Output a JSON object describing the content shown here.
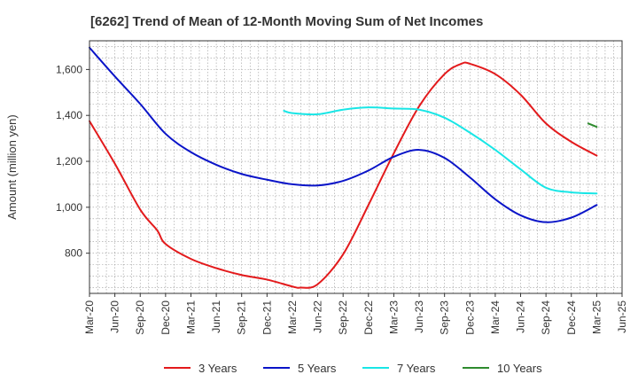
{
  "chart_data": {
    "type": "line",
    "title": "[6262]  Trend of Mean of 12-Month Moving Sum of Net Incomes",
    "xlabel": "",
    "ylabel": "Amount (million yen)",
    "ylim": [
      625,
      1725
    ],
    "yticks": [
      800,
      1000,
      1200,
      1400,
      1600
    ],
    "ytick_labels": [
      "800",
      "1,000",
      "1,200",
      "1,400",
      "1,600"
    ],
    "xrange": [
      "Mar-20",
      "Jun-25"
    ],
    "xtick_labels": [
      "Mar-20",
      "Jun-20",
      "Sep-20",
      "Dec-20",
      "Mar-21",
      "Jun-21",
      "Sep-21",
      "Dec-21",
      "Mar-22",
      "Jun-22",
      "Sep-22",
      "Dec-22",
      "Mar-23",
      "Jun-23",
      "Sep-23",
      "Dec-23",
      "Mar-24",
      "Jun-24",
      "Sep-24",
      "Dec-24",
      "Mar-25",
      "Jun-25"
    ],
    "grid": true,
    "legend_position": "bottom",
    "series": [
      {
        "name": "3 Years",
        "color": "#e31a1c",
        "x": [
          "Mar-20",
          "Jun-20",
          "Sep-20",
          "Nov-20",
          "Dec-20",
          "Mar-21",
          "Jun-21",
          "Sep-21",
          "Dec-21",
          "Mar-22",
          "Apr-22",
          "Jun-22",
          "Sep-22",
          "Dec-22",
          "Mar-23",
          "Jun-23",
          "Sep-23",
          "Nov-23",
          "Dec-23",
          "Mar-24",
          "Jun-24",
          "Sep-24",
          "Dec-24",
          "Mar-25"
        ],
        "y": [
          1375,
          1190,
          990,
          900,
          840,
          775,
          735,
          705,
          685,
          655,
          650,
          665,
          795,
          1010,
          1235,
          1440,
          1580,
          1625,
          1625,
          1580,
          1490,
          1365,
          1285,
          1225
        ]
      },
      {
        "name": "5 Years",
        "color": "#0a14c8",
        "x": [
          "Mar-20",
          "Jun-20",
          "Sep-20",
          "Dec-20",
          "Mar-21",
          "Jun-21",
          "Sep-21",
          "Dec-21",
          "Mar-22",
          "Jun-22",
          "Sep-22",
          "Dec-22",
          "Mar-23",
          "Jun-23",
          "Sep-23",
          "Dec-23",
          "Mar-24",
          "Jun-24",
          "Sep-24",
          "Dec-24",
          "Mar-25"
        ],
        "y": [
          1695,
          1570,
          1450,
          1320,
          1240,
          1185,
          1145,
          1120,
          1100,
          1095,
          1115,
          1160,
          1220,
          1250,
          1215,
          1130,
          1035,
          965,
          935,
          955,
          1010
        ]
      },
      {
        "name": "7 Years",
        "color": "#19e6e6",
        "x": [
          "Feb-22",
          "Mar-22",
          "Jun-22",
          "Sep-22",
          "Dec-22",
          "Mar-23",
          "Jun-23",
          "Sep-23",
          "Dec-23",
          "Mar-24",
          "Jun-24",
          "Sep-24",
          "Dec-24",
          "Mar-25"
        ],
        "y": [
          1420,
          1410,
          1405,
          1425,
          1435,
          1430,
          1425,
          1390,
          1325,
          1250,
          1165,
          1085,
          1065,
          1060
        ]
      },
      {
        "name": "10 Years",
        "color": "#2e8b2e",
        "x": [
          "Feb-25",
          "Mar-25"
        ],
        "y": [
          1365,
          1350
        ]
      }
    ]
  }
}
